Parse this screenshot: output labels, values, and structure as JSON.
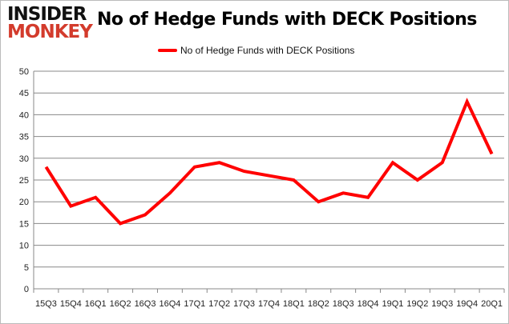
{
  "logo": {
    "line1": "INSIDER",
    "line2": "MONKEY"
  },
  "colors": {
    "series": "#ff0000",
    "grid": "#888888",
    "logo_red": "#d33b2c"
  },
  "chart_data": {
    "type": "line",
    "title": "No of Hedge Funds with DECK Positions",
    "legend_position": "top",
    "grid": true,
    "ylim": [
      0,
      50
    ],
    "yticks": [
      0,
      5,
      10,
      15,
      20,
      25,
      30,
      35,
      40,
      45,
      50
    ],
    "categories": [
      "15Q3",
      "15Q4",
      "16Q1",
      "16Q2",
      "16Q3",
      "16Q4",
      "17Q1",
      "17Q2",
      "17Q3",
      "17Q4",
      "18Q1",
      "18Q2",
      "18Q3",
      "18Q4",
      "19Q1",
      "19Q2",
      "19Q3",
      "19Q4",
      "20Q1"
    ],
    "series": [
      {
        "name": "No of Hedge Funds with DECK Positions",
        "values": [
          28,
          19,
          21,
          15,
          17,
          22,
          28,
          29,
          27,
          26,
          25,
          20,
          22,
          21,
          29,
          25,
          29,
          43,
          31
        ]
      }
    ]
  }
}
